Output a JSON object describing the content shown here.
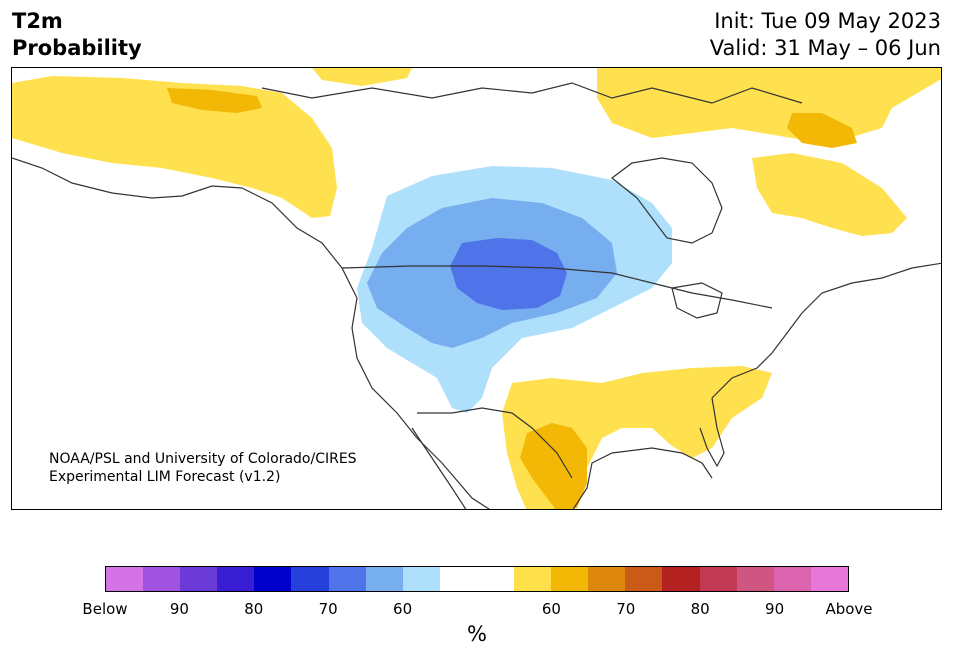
{
  "title": {
    "line1": "T2m",
    "line2": "Probability"
  },
  "info": {
    "init": "Init: Tue 09 May 2023",
    "valid": "Valid: 31 May – 06 Jun"
  },
  "credit": {
    "line1": "NOAA/PSL and University of Colorado/CIRES",
    "line2": "Experimental LIM Forecast (v1.2)"
  },
  "colorbar": {
    "unit": "%",
    "colors": [
      "#d473e8",
      "#9f53e0",
      "#6b3bd8",
      "#3a1ed4",
      "#0000cd",
      "#2640dc",
      "#4f73e8",
      "#76aef0",
      "#aee0fb",
      "#ffffff",
      "#ffffff",
      "#ffdf4a",
      "#f2b805",
      "#de870d",
      "#c95a18",
      "#b32121",
      "#c23a56",
      "#d05682",
      "#dc63ad",
      "#e878d8"
    ],
    "ticks": [
      "Below",
      "90",
      "80",
      "70",
      "60",
      "60",
      "70",
      "80",
      "90",
      "Above"
    ]
  },
  "map_colors": {
    "above_50": "#ffe04f",
    "above_60": "#f2b805",
    "below_50": "#aee0fb",
    "below_60": "#76aef0",
    "below_70": "#4f73e8",
    "outline": "#333333"
  }
}
